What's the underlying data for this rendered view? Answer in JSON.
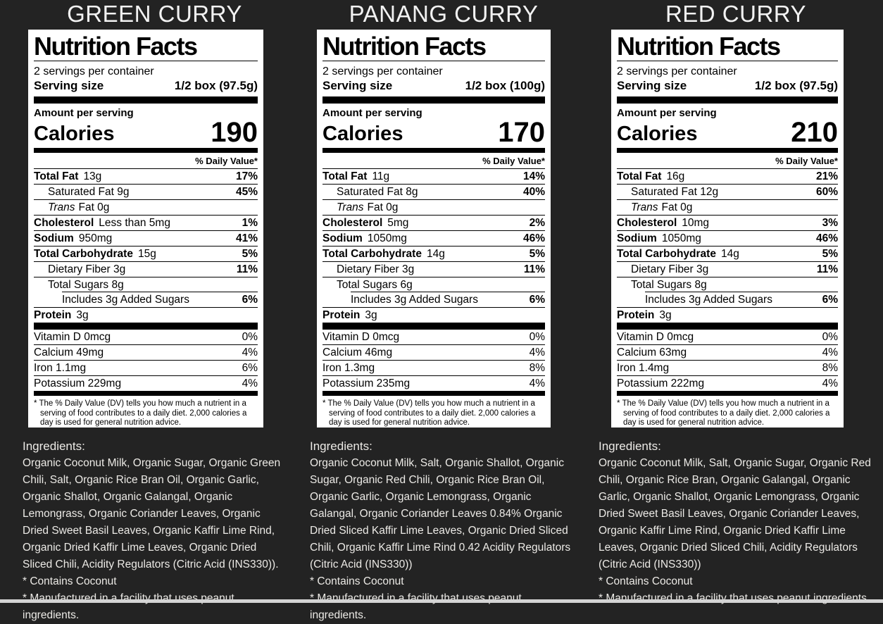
{
  "colors": {
    "background": "#232323",
    "panel": "#ffffff",
    "panel_text": "#000000",
    "title_text": "#f2f2f2",
    "ingredients_text": "#eceae6",
    "bottom_strip": "#d4d4d4"
  },
  "products": [
    {
      "title": "GREEN CURRY",
      "label": {
        "heading": "Nutrition Facts",
        "servings": "2 servings per container",
        "serving_size_label": "Serving size",
        "serving_size_value": "1/2 box (97.5g)",
        "amount_per_serving": "Amount per serving",
        "calories_label": "Calories",
        "calories": "190",
        "daily_value_header": "% Daily Value*",
        "rows": [
          {
            "name": "Total Fat",
            "rest": "13g",
            "dv": "17%"
          },
          {
            "rest": "Saturated Fat 9g",
            "dv": "45%",
            "indent": 1
          },
          {
            "italic": "Trans",
            "rest": "Fat 0g",
            "indent": 1
          },
          {
            "name": "Cholesterol",
            "rest": "Less than 5mg",
            "dv": "1%"
          },
          {
            "name": "Sodium",
            "rest": "950mg",
            "dv": "41%"
          },
          {
            "name": "Total Carbohydrate",
            "rest": "15g",
            "dv": "5%"
          },
          {
            "rest": "Dietary Fiber 3g",
            "dv": "11%",
            "indent": 1
          },
          {
            "rest": "Total Sugars 8g",
            "indent": 1
          },
          {
            "rest": "Includes 3g Added Sugars",
            "dv": "6%",
            "indent": 2,
            "sep": "indent"
          },
          {
            "name": "Protein",
            "rest": "3g"
          }
        ],
        "vitamins": [
          {
            "rest": "Vitamin D 0mcg",
            "dv": "0%"
          },
          {
            "rest": "Calcium 49mg",
            "dv": "4%"
          },
          {
            "rest": "Iron 1.1mg",
            "dv": "6%"
          },
          {
            "rest": "Potassium 229mg",
            "dv": "4%"
          }
        ],
        "footnote": "* The % Daily Value (DV) tells you how much a nutrient in a serving of food contributes to a daily diet. 2,000 calories a day is used for general nutrition advice."
      },
      "ingredients": {
        "heading": "Ingredients:",
        "text": "Organic Coconut Milk, Organic Sugar, Organic Green Chili, Salt, Organic Rice Bran Oil, Organic Garlic, Organic Shallot, Organic Galangal, Organic Lemongrass, Organic Coriander Leaves, Organic Dried Sweet Basil Leaves, Organic Kaffir Lime Rind, Organic Dried Kaffir Lime Leaves, Organic Dried Sliced Chili, Acidity Regulators (Citric Acid (INS330)).",
        "note1": "* Contains Coconut",
        "note2": "* Manufactured in a facility that uses peanut ingredients."
      }
    },
    {
      "title": "PANANG CURRY",
      "label": {
        "heading": "Nutrition Facts",
        "servings": "2 servings per container",
        "serving_size_label": "Serving size",
        "serving_size_value": "1/2 box (100g)",
        "amount_per_serving": "Amount per serving",
        "calories_label": "Calories",
        "calories": "170",
        "daily_value_header": "% Daily Value*",
        "rows": [
          {
            "name": "Total Fat",
            "rest": "11g",
            "dv": "14%"
          },
          {
            "rest": "Saturated Fat 8g",
            "dv": "40%",
            "indent": 1
          },
          {
            "italic": "Trans",
            "rest": "Fat 0g",
            "indent": 1
          },
          {
            "name": "Cholesterol",
            "rest": "5mg",
            "dv": "2%"
          },
          {
            "name": "Sodium",
            "rest": "1050mg",
            "dv": "46%"
          },
          {
            "name": "Total Carbohydrate",
            "rest": "14g",
            "dv": "5%"
          },
          {
            "rest": "Dietary Fiber 3g",
            "dv": "11%",
            "indent": 1
          },
          {
            "rest": "Total Sugars 6g",
            "indent": 1
          },
          {
            "rest": "Includes 3g Added Sugars",
            "dv": "6%",
            "indent": 2,
            "sep": "indent"
          },
          {
            "name": "Protein",
            "rest": "3g"
          }
        ],
        "vitamins": [
          {
            "rest": "Vitamin D 0mcg",
            "dv": "0%"
          },
          {
            "rest": "Calcium 46mg",
            "dv": "4%"
          },
          {
            "rest": "Iron 1.3mg",
            "dv": "8%"
          },
          {
            "rest": "Potassium 235mg",
            "dv": "4%"
          }
        ],
        "footnote": "* The % Daily Value (DV) tells you how much a nutrient in a serving of food contributes to a daily diet. 2,000 calories a day is used for general nutrition advice."
      },
      "ingredients": {
        "heading": "Ingredients:",
        "text": "Organic Coconut Milk, Salt, Organic Shallot, Organic Sugar, Organic Red Chili, Organic Rice Bran Oil, Organic Garlic, Organic Lemongrass, Organic Galangal, Organic Coriander Leaves 0.84% Organic Dried Sliced Kaffir Lime Leaves, Organic Dried Sliced Chili, Organic Kaffir Lime Rind 0.42 Acidity Regulators (Citric Acid (INS330))",
        "note1": "* Contains Coconut",
        "note2": "* Manufactured in a facility that uses peanut ingredients."
      }
    },
    {
      "title": "RED CURRY",
      "label": {
        "heading": "Nutrition Facts",
        "servings": "2 servings per container",
        "serving_size_label": "Serving size",
        "serving_size_value": "1/2 box (97.5g)",
        "amount_per_serving": "Amount per serving",
        "calories_label": "Calories",
        "calories": "210",
        "daily_value_header": "% Daily Value*",
        "rows": [
          {
            "name": "Total Fat",
            "rest": "16g",
            "dv": "21%"
          },
          {
            "rest": "Saturated Fat 12g",
            "dv": "60%",
            "indent": 1
          },
          {
            "italic": "Trans",
            "rest": "Fat 0g",
            "indent": 1
          },
          {
            "name": "Cholesterol",
            "rest": "10mg",
            "dv": "3%"
          },
          {
            "name": "Sodium",
            "rest": "1050mg",
            "dv": "46%"
          },
          {
            "name": "Total Carbohydrate",
            "rest": "14g",
            "dv": "5%"
          },
          {
            "rest": "Dietary Fiber 3g",
            "dv": "11%",
            "indent": 1
          },
          {
            "rest": "Total Sugars 8g",
            "indent": 1
          },
          {
            "rest": "Includes 3g Added Sugars",
            "dv": "6%",
            "indent": 2,
            "sep": "indent"
          },
          {
            "name": "Protein",
            "rest": "3g"
          }
        ],
        "vitamins": [
          {
            "rest": "Vitamin D 0mcg",
            "dv": "0%"
          },
          {
            "rest": "Calcium 63mg",
            "dv": "4%"
          },
          {
            "rest": "Iron 1.4mg",
            "dv": "8%"
          },
          {
            "rest": "Potassium 222mg",
            "dv": "4%"
          }
        ],
        "footnote": "* The % Daily Value (DV) tells you how much a nutrient in a serving of food contributes to a daily diet. 2,000 calories a day is used for general nutrition advice."
      },
      "ingredients": {
        "heading": "Ingredients:",
        "text": "Organic Coconut Milk, Salt, Organic Sugar, Organic Red Chili, Organic Rice Bran, Organic Galangal, Organic Garlic, Organic Shallot, Organic Lemongrass, Organic Dried Sweet Basil Leaves, Organic Coriander Leaves, Organic Kaffir Lime Rind, Organic Dried Kaffir Lime Leaves, Organic Dried Sliced Chili, Acidity Regulators (Citric Acid (INS330))",
        "note1": "* Contains Coconut",
        "note2": "* Manufactured in a facility that uses peanut ingredients."
      }
    }
  ]
}
